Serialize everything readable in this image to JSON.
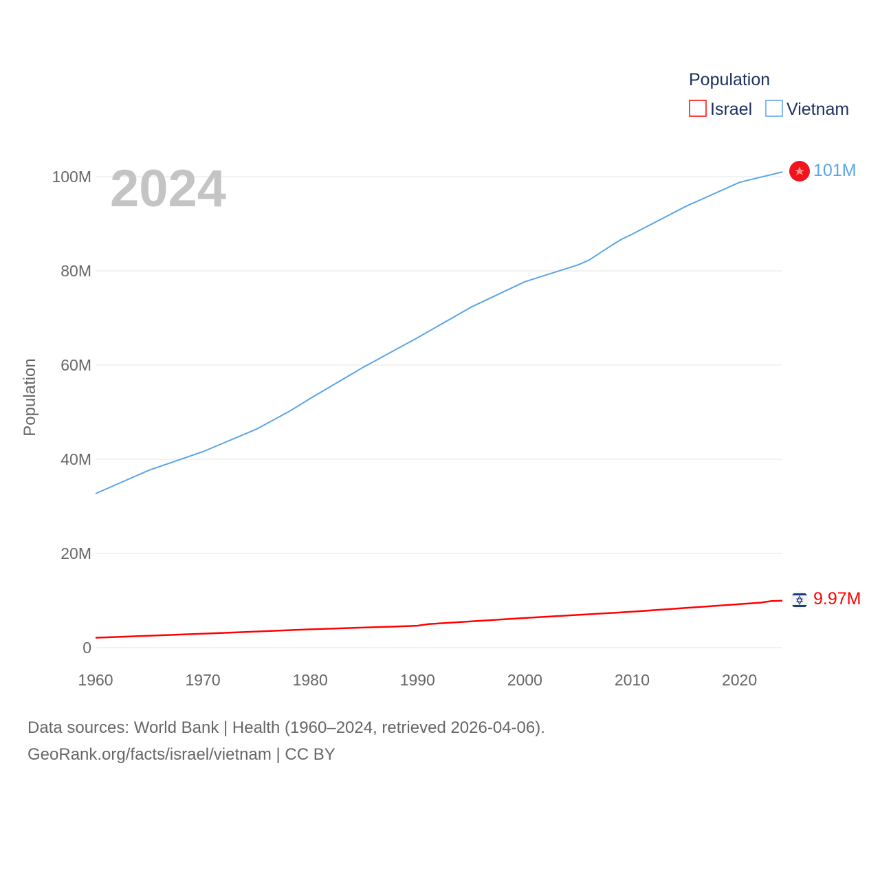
{
  "chart_data": {
    "type": "line",
    "ylabel": "Population",
    "year_label": "2024",
    "legend": {
      "title": "Population",
      "placement": "top-right",
      "entries": [
        "Israel",
        "Vietnam"
      ]
    },
    "xlim": [
      1960,
      2024
    ],
    "ylim": [
      0,
      100000000
    ],
    "xticks": [
      "1960",
      "1970",
      "1980",
      "1990",
      "2000",
      "2010",
      "2020"
    ],
    "xtick_values": [
      1960,
      1970,
      1980,
      1990,
      2000,
      2010,
      2020
    ],
    "yticks": [
      "0",
      "20M",
      "40M",
      "60M",
      "80M",
      "100M"
    ],
    "ytick_values": [
      0,
      20000000,
      40000000,
      60000000,
      80000000,
      100000000
    ],
    "grid": true,
    "series": [
      {
        "name": "Israel",
        "color": "#ff0000",
        "end_label": "9.97M",
        "flag_icon": "israel-flag-icon",
        "x": [
          1960,
          1970,
          1980,
          1989,
          1990,
          1991,
          2000,
          2010,
          2020,
          2022,
          2023,
          2024
        ],
        "values": [
          2.1,
          2.97,
          3.88,
          4.56,
          4.66,
          5.0,
          6.29,
          7.62,
          9.22,
          9.56,
          9.9,
          9.97
        ]
      },
      {
        "name": "Vietnam",
        "color": "#5ba4e6",
        "end_label": "101M",
        "flag_icon": "vietnam-flag-icon",
        "x": [
          1960,
          1965,
          1970,
          1975,
          1978,
          1980,
          1985,
          1990,
          1995,
          2000,
          2005,
          2006,
          2008,
          2009,
          2010,
          2015,
          2020,
          2024
        ],
        "values": [
          32.7,
          37.7,
          41.6,
          46.4,
          50.1,
          52.9,
          59.6,
          65.8,
          72.3,
          77.7,
          81.3,
          82.3,
          85.3,
          86.7,
          87.8,
          93.7,
          98.8,
          101.0
        ]
      }
    ]
  },
  "footer": {
    "line1": "Data sources: World Bank | Health (1960–2024, retrieved 2026-04-06).",
    "line2": "GeoRank.org/facts/israel/vietnam | CC BY"
  }
}
